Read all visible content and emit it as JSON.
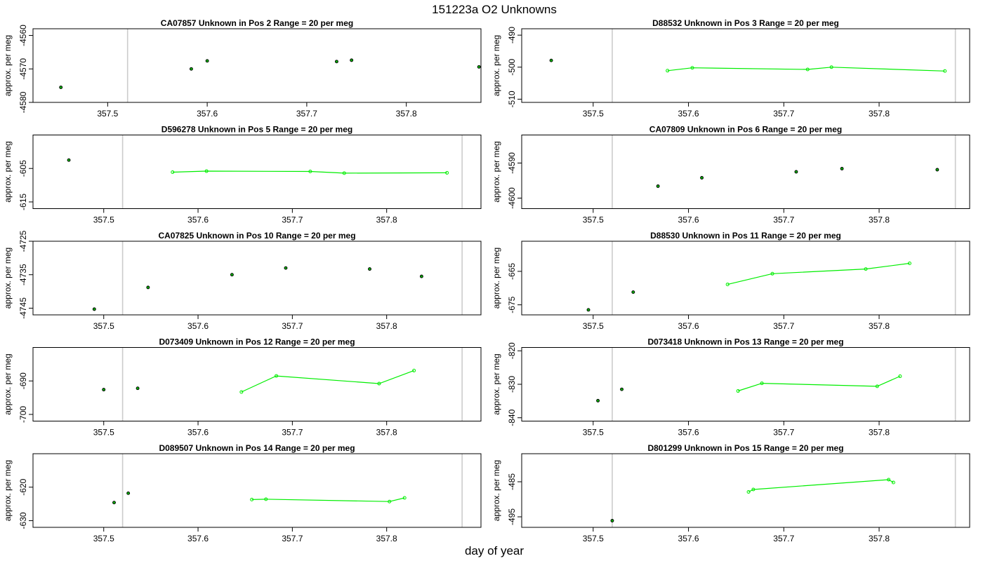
{
  "figure": {
    "title": "151223a  O2 Unknowns",
    "xlabel": "day of year"
  },
  "styles": {
    "connected_color": "#00ee00",
    "isolated_marker_fill": "#00aa00",
    "vline_color": "#cccccc",
    "axis_color": "#000000"
  },
  "chart_data": [
    {
      "type": "scatter",
      "title": "CA07857    Unknown in Pos 2          Range = 20 per meg",
      "ylabel": "approx. per meg",
      "xlim": [
        357.425,
        357.875
      ],
      "ylim": [
        -4580,
        -4558
      ],
      "xticks": [
        357.5,
        357.6,
        357.7,
        357.8
      ],
      "yticks": [
        -4580,
        -4570,
        -4560
      ],
      "vlines": [
        357.52
      ],
      "points": [
        [
          357.453,
          -4575.5
        ],
        [
          357.584,
          -4570.0
        ],
        [
          357.6,
          -4567.6
        ],
        [
          357.73,
          -4567.8
        ],
        [
          357.745,
          -4567.4
        ],
        [
          357.873,
          -4569.4
        ]
      ],
      "line": []
    },
    {
      "type": "scatter",
      "title": "D88532    Unknown in Pos 3          Range = 20 per meg",
      "ylabel": "approx. per meg",
      "xlim": [
        357.425,
        357.895
      ],
      "ylim": [
        -511,
        -488
      ],
      "xticks": [
        357.5,
        357.6,
        357.7,
        357.8
      ],
      "yticks": [
        -510,
        -500,
        -490
      ],
      "vlines": [
        357.52,
        357.88
      ],
      "points": [
        [
          357.456,
          -497.9
        ]
      ],
      "line": [
        [
          357.578,
          -501.1
        ],
        [
          357.604,
          -500.2
        ],
        [
          357.725,
          -500.7
        ],
        [
          357.75,
          -500.0
        ],
        [
          357.869,
          -501.2
        ]
      ]
    },
    {
      "type": "scatter",
      "title": "D596278    Unknown in Pos 5          Range = 20 per meg",
      "ylabel": "approx. per meg",
      "xlim": [
        357.425,
        357.9
      ],
      "ylim": [
        -617,
        -595
      ],
      "xticks": [
        357.5,
        357.6,
        357.7,
        357.8
      ],
      "yticks": [
        -615,
        -605
      ],
      "vlines": [
        357.52,
        357.88
      ],
      "points": [
        [
          357.463,
          -602.5
        ]
      ],
      "line": [
        [
          357.573,
          -606.1
        ],
        [
          357.609,
          -605.8
        ],
        [
          357.719,
          -605.9
        ],
        [
          357.755,
          -606.4
        ],
        [
          357.864,
          -606.3
        ]
      ]
    },
    {
      "type": "scatter",
      "title": "CA07809    Unknown in Pos 6          Range = 20 per meg",
      "ylabel": "approx. per meg",
      "xlim": [
        357.425,
        357.895
      ],
      "ylim": [
        -4603,
        -4582
      ],
      "xticks": [
        357.5,
        357.6,
        357.7,
        357.8
      ],
      "yticks": [
        -4600,
        -4590
      ],
      "vlines": [
        357.52,
        357.88
      ],
      "points": [
        [
          357.568,
          -4596.6
        ],
        [
          357.614,
          -4594.2
        ],
        [
          357.713,
          -4592.5
        ],
        [
          357.761,
          -4591.6
        ],
        [
          357.861,
          -4591.9
        ]
      ],
      "line": []
    },
    {
      "type": "scatter",
      "title": "CA07825    Unknown in Pos 10          Range = 20 per meg",
      "ylabel": "approx. per meg",
      "xlim": [
        357.425,
        357.9
      ],
      "ylim": [
        -4747,
        -4725
      ],
      "xticks": [
        357.5,
        357.6,
        357.7,
        357.8
      ],
      "yticks": [
        -4745,
        -4735,
        -4725
      ],
      "vlines": [
        357.52,
        357.88
      ],
      "points": [
        [
          357.49,
          -4745.3
        ],
        [
          357.547,
          -4738.8
        ],
        [
          357.636,
          -4735.0
        ],
        [
          357.693,
          -4733.0
        ],
        [
          357.782,
          -4733.3
        ],
        [
          357.837,
          -4735.5
        ]
      ],
      "line": []
    },
    {
      "type": "scatter",
      "title": "D88530    Unknown in Pos 11          Range = 20 per meg",
      "ylabel": "approx. per meg",
      "xlim": [
        357.425,
        357.895
      ],
      "ylim": [
        -678,
        -656
      ],
      "xticks": [
        357.5,
        357.6,
        357.7,
        357.8
      ],
      "yticks": [
        -675,
        -665
      ],
      "vlines": [
        357.52,
        357.88
      ],
      "points": [
        [
          357.495,
          -676.5
        ],
        [
          357.542,
          -671.2
        ]
      ],
      "line": [
        [
          357.641,
          -668.9
        ],
        [
          357.688,
          -665.7
        ],
        [
          357.786,
          -664.3
        ],
        [
          357.832,
          -662.6
        ]
      ]
    },
    {
      "type": "scatter",
      "title": "D073409    Unknown in Pos 12          Range = 20 per meg",
      "ylabel": "approx. per meg",
      "xlim": [
        357.425,
        357.9
      ],
      "ylim": [
        -702,
        -680
      ],
      "xticks": [
        357.5,
        357.6,
        357.7,
        357.8
      ],
      "yticks": [
        -700,
        -690
      ],
      "vlines": [
        357.52,
        357.88
      ],
      "points": [
        [
          357.5,
          -692.6
        ],
        [
          357.536,
          -692.2
        ]
      ],
      "line": [
        [
          357.646,
          -693.3
        ],
        [
          357.683,
          -688.5
        ],
        [
          357.792,
          -690.8
        ],
        [
          357.829,
          -686.9
        ]
      ]
    },
    {
      "type": "scatter",
      "title": "D073418    Unknown in Pos 13          Range = 20 per meg",
      "ylabel": "approx. per meg",
      "xlim": [
        357.425,
        357.895
      ],
      "ylim": [
        -841,
        -819
      ],
      "xticks": [
        357.5,
        357.6,
        357.7,
        357.8
      ],
      "yticks": [
        -840,
        -830,
        -820
      ],
      "vlines": [
        357.52,
        357.88
      ],
      "points": [
        [
          357.505,
          -834.9
        ],
        [
          357.53,
          -831.5
        ]
      ],
      "line": [
        [
          357.652,
          -832.0
        ],
        [
          357.677,
          -829.7
        ],
        [
          357.798,
          -830.6
        ],
        [
          357.822,
          -827.6
        ]
      ]
    },
    {
      "type": "scatter",
      "title": "D089507    Unknown in Pos 14          Range = 20 per meg",
      "ylabel": "approx. per meg",
      "xlim": [
        357.425,
        357.9
      ],
      "ylim": [
        -632,
        -610
      ],
      "xticks": [
        357.5,
        357.6,
        357.7,
        357.8
      ],
      "yticks": [
        -630,
        -620
      ],
      "vlines": [
        357.52,
        357.88
      ],
      "points": [
        [
          357.511,
          -624.6
        ],
        [
          357.526,
          -621.8
        ]
      ],
      "line": [
        [
          357.657,
          -623.7
        ],
        [
          357.672,
          -623.6
        ],
        [
          357.803,
          -624.3
        ],
        [
          357.819,
          -623.2
        ]
      ]
    },
    {
      "type": "scatter",
      "title": "D801299    Unknown in Pos 15          Range = 20 per meg",
      "ylabel": "approx. per meg",
      "xlim": [
        357.425,
        357.895
      ],
      "ylim": [
        -498,
        -477
      ],
      "xticks": [
        357.5,
        357.6,
        357.7,
        357.8
      ],
      "yticks": [
        -495,
        -485
      ],
      "vlines": [
        357.52,
        357.88
      ],
      "points": [
        [
          357.52,
          -496.1
        ]
      ],
      "line": [
        [
          357.663,
          -487.9
        ],
        [
          357.668,
          -487.2
        ],
        [
          357.81,
          -484.4
        ],
        [
          357.815,
          -485.2
        ]
      ]
    }
  ]
}
